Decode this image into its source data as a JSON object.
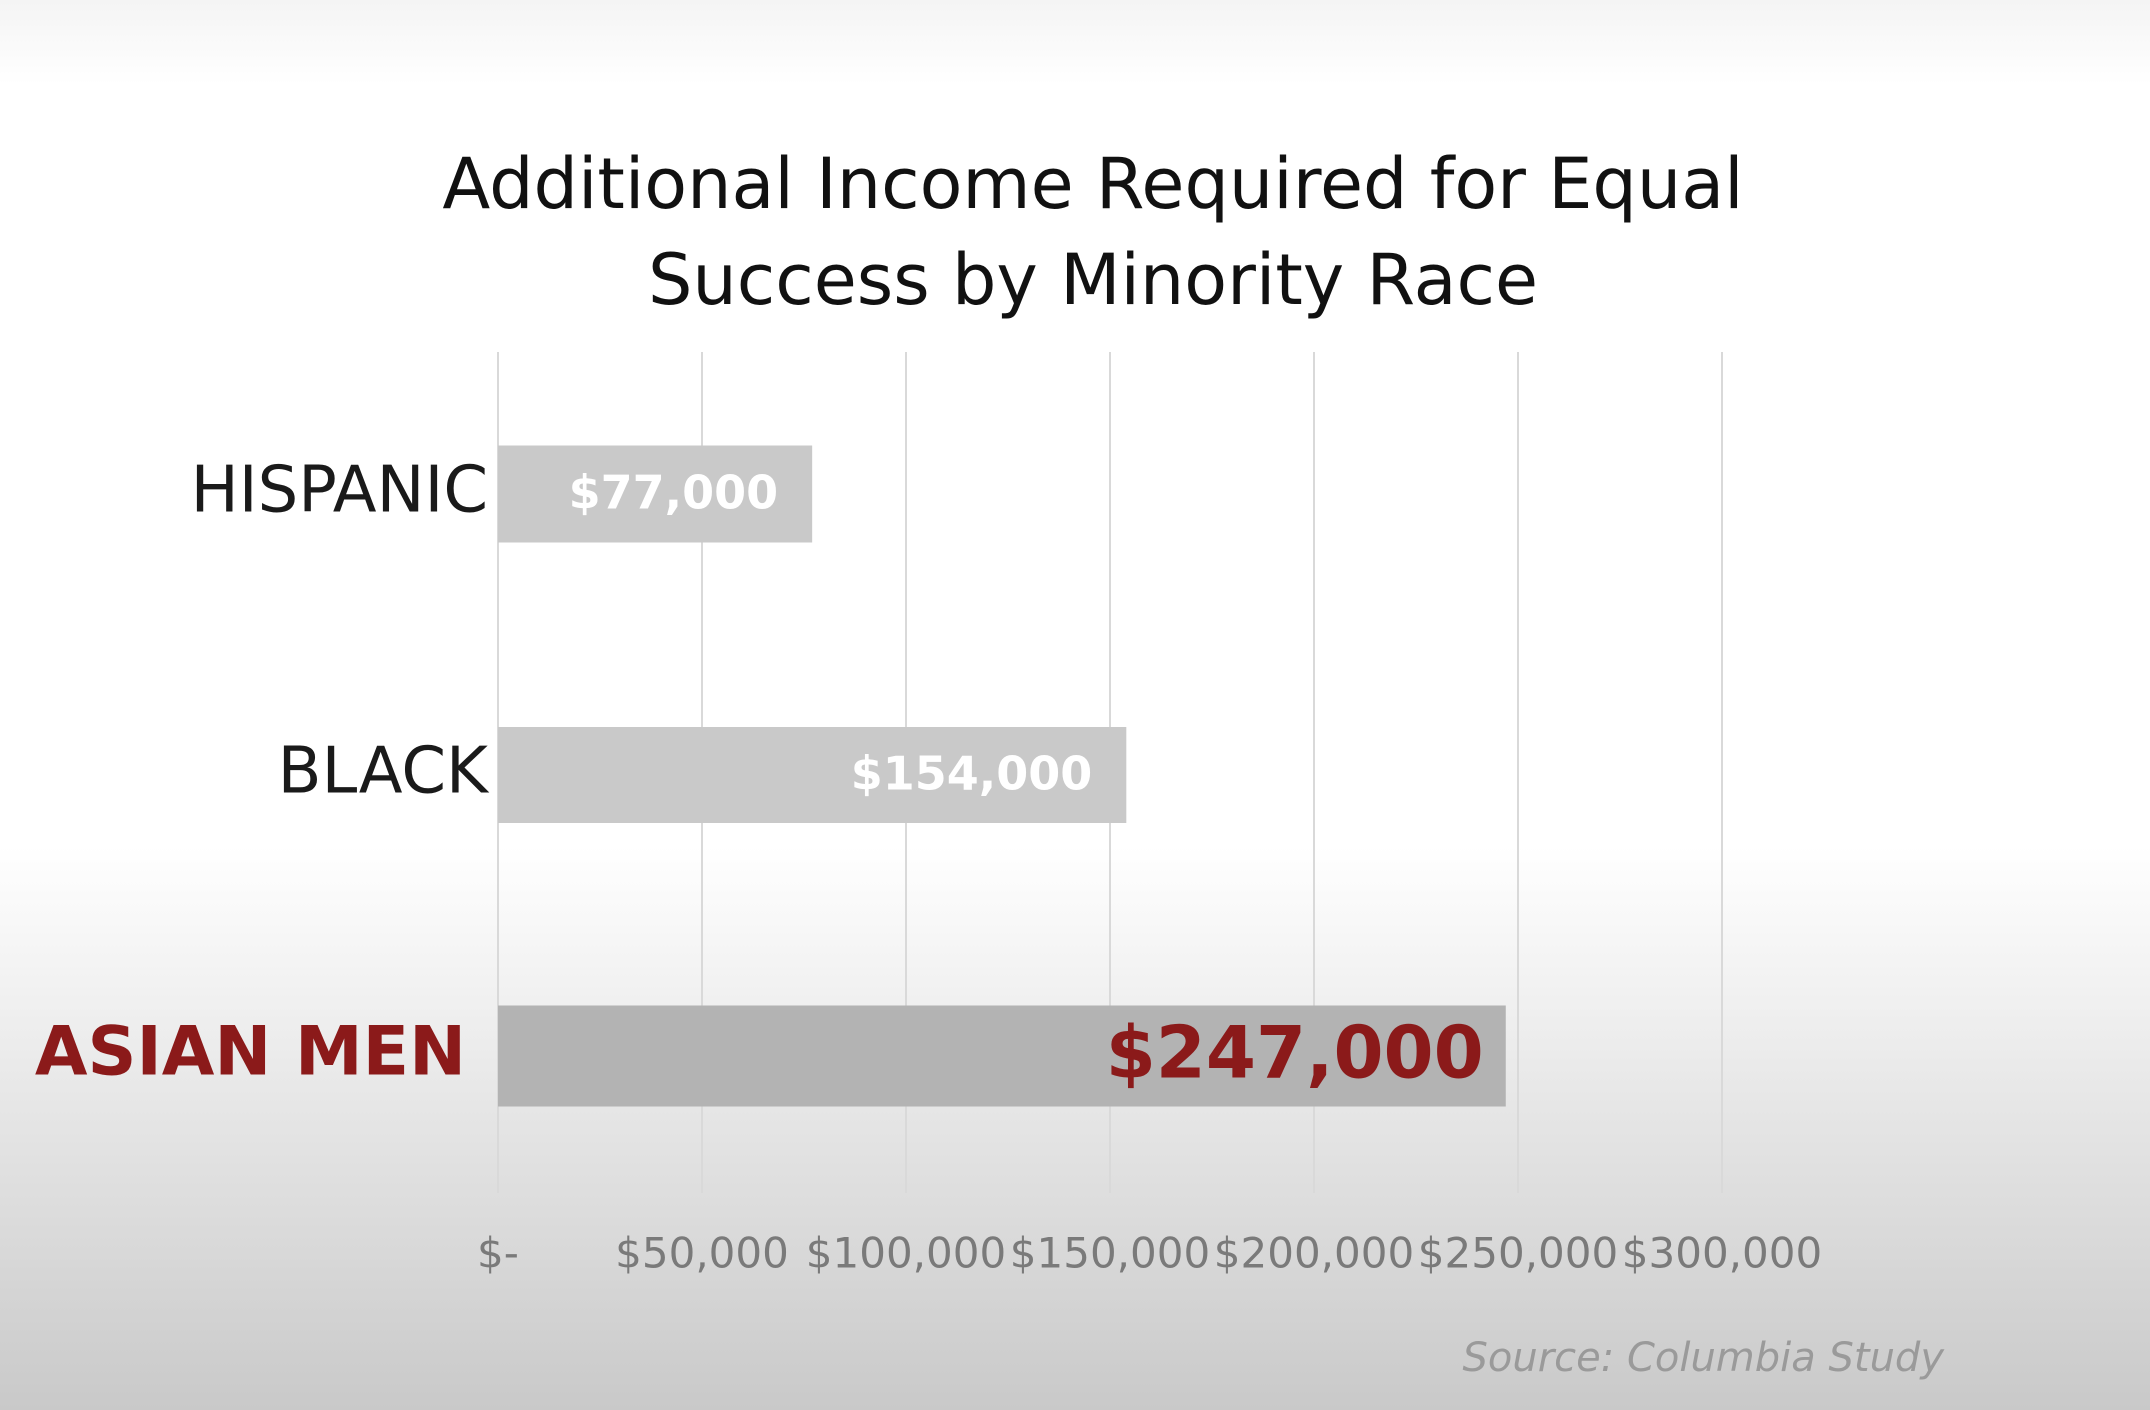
{
  "chart_data": {
    "type": "hbar",
    "title": [
      "Additional Income Required for Equal",
      "Success by Minority Race"
    ],
    "categories": [
      "HISPANIC",
      "BLACK",
      "ASIAN MEN"
    ],
    "values": [
      77000,
      154000,
      247000
    ],
    "value_labels": [
      "$77,000",
      "$154,000",
      "$247,000"
    ],
    "colors": [
      "#c9c9c9",
      "#c9c9c9",
      "#b3b3b3"
    ],
    "category_colors": [
      "#1a1a1a",
      "#1a1a1a",
      "#8b1a1a"
    ],
    "value_label_colors": [
      "#ffffff",
      "#ffffff",
      "#8b1a1a"
    ],
    "emphasis": [
      false,
      false,
      true
    ],
    "xlim": [
      0,
      300000
    ],
    "xticks": [
      {
        "value": 0,
        "label": "$-"
      },
      {
        "value": 50000,
        "label": "$50,000"
      },
      {
        "value": 100000,
        "label": "$100,000"
      },
      {
        "value": 150000,
        "label": "$150,000"
      },
      {
        "value": 200000,
        "label": "$200,000"
      },
      {
        "value": 250000,
        "label": "$250,000"
      },
      {
        "value": 300000,
        "label": "$300,000"
      }
    ],
    "grid": true,
    "source": "Source: Columbia Study"
  }
}
